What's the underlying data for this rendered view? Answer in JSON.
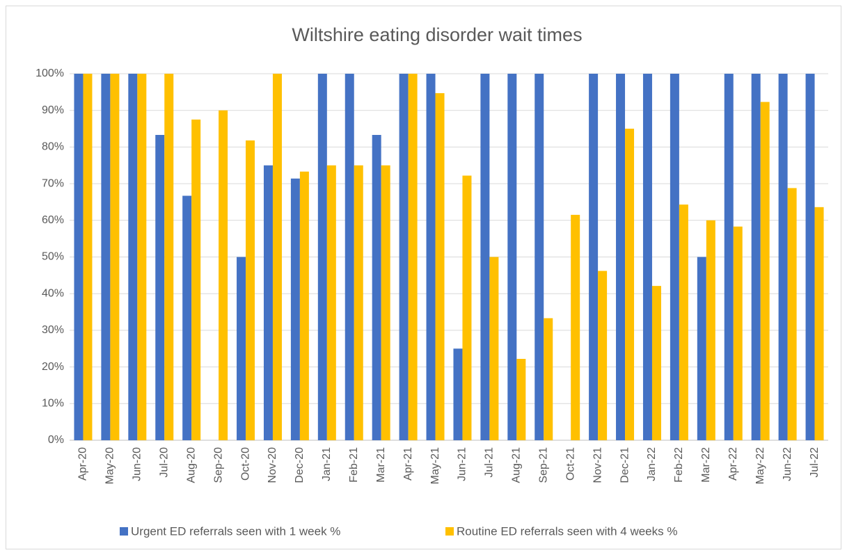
{
  "chart_data": {
    "type": "bar",
    "title": "Wiltshire eating disorder wait times",
    "categories": [
      "Apr-20",
      "May-20",
      "Jun-20",
      "Jul-20",
      "Aug-20",
      "Sep-20",
      "Oct-20",
      "Nov-20",
      "Dec-20",
      "Jan-21",
      "Feb-21",
      "Mar-21",
      "Apr-21",
      "May-21",
      "Jun-21",
      "Jul-21",
      "Aug-21",
      "Sep-21",
      "Oct-21",
      "Nov-21",
      "Dec-21",
      "Jan-22",
      "Feb-22",
      "Mar-22",
      "Apr-22",
      "May-22",
      "Jun-22",
      "Jul-22"
    ],
    "series": [
      {
        "name": "Urgent ED referrals seen with 1 week %",
        "color": "#4472c4",
        "values": [
          100,
          100,
          100,
          83.3,
          66.7,
          0,
          50,
          75,
          71.4,
          100,
          100,
          83.3,
          100,
          100,
          25,
          100,
          100,
          100,
          0,
          100,
          100,
          100,
          100,
          50,
          100,
          100,
          100,
          100
        ]
      },
      {
        "name": "Routine ED referrals seen with 4 weeks %",
        "color": "#ffc000",
        "values": [
          100,
          100,
          100,
          100,
          87.5,
          90,
          81.8,
          100,
          73.3,
          75,
          75,
          75,
          100,
          94.7,
          72.2,
          50,
          22.2,
          33.3,
          61.5,
          46.2,
          85,
          42.1,
          64.3,
          60,
          58.3,
          92.3,
          68.8,
          63.6
        ]
      }
    ],
    "ylim": [
      0,
      100
    ],
    "yticks": [
      {
        "value": 0,
        "label": "0%"
      },
      {
        "value": 10,
        "label": "10%"
      },
      {
        "value": 20,
        "label": "20%"
      },
      {
        "value": 30,
        "label": "30%"
      },
      {
        "value": 40,
        "label": "40%"
      },
      {
        "value": 50,
        "label": "50%"
      },
      {
        "value": 60,
        "label": "60%"
      },
      {
        "value": 70,
        "label": "70%"
      },
      {
        "value": 80,
        "label": "80%"
      },
      {
        "value": 90,
        "label": "90%"
      },
      {
        "value": 100,
        "label": "100%"
      }
    ],
    "grid": true,
    "legend": "bottom"
  }
}
